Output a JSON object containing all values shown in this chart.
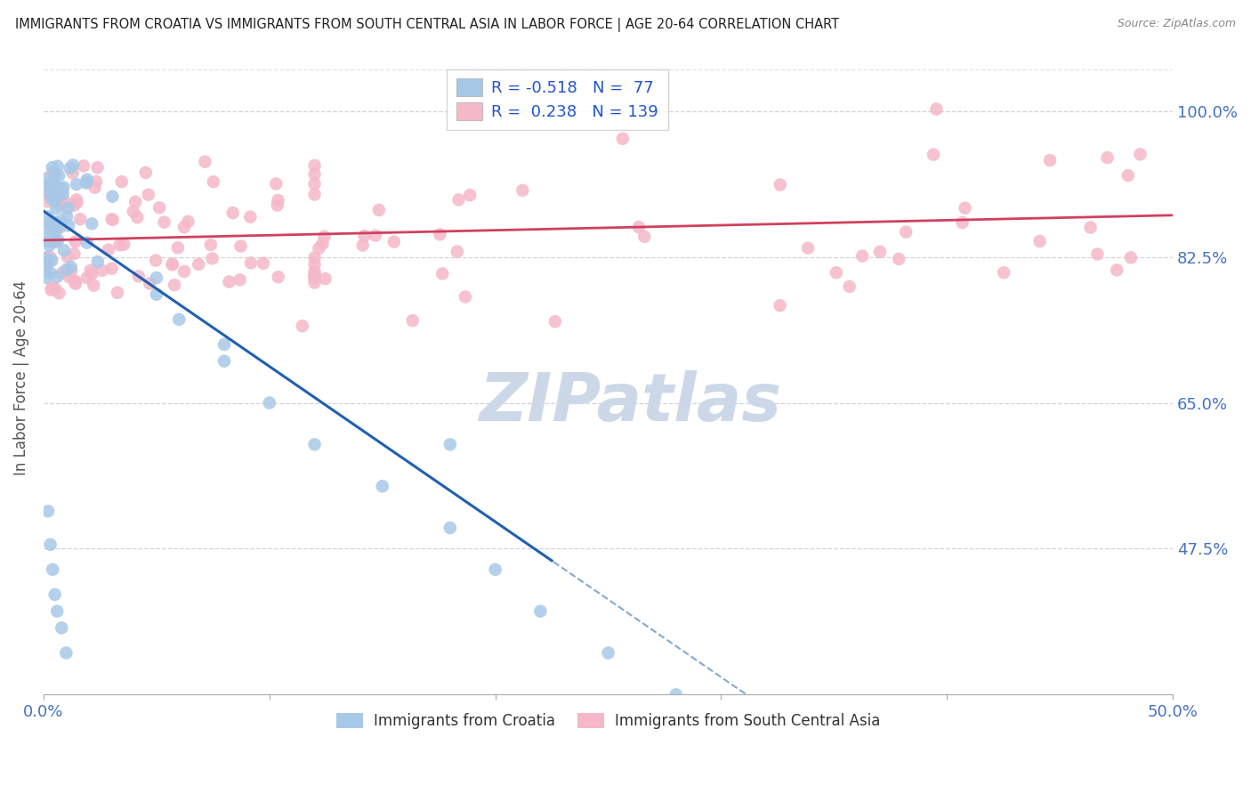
{
  "title": "IMMIGRANTS FROM CROATIA VS IMMIGRANTS FROM SOUTH CENTRAL ASIA IN LABOR FORCE | AGE 20-64 CORRELATION CHART",
  "source": "Source: ZipAtlas.com",
  "ylabel": "In Labor Force | Age 20-64",
  "x_min": 0.0,
  "x_max": 0.5,
  "y_min": 0.3,
  "y_max": 1.06,
  "y_ticks": [
    0.475,
    0.65,
    0.825,
    1.0
  ],
  "y_tick_labels": [
    "47.5%",
    "65.0%",
    "82.5%",
    "100.0%"
  ],
  "x_ticks": [
    0.0,
    0.1,
    0.2,
    0.3,
    0.4,
    0.5
  ],
  "x_tick_labels": [
    "0.0%",
    "",
    "",
    "",
    "",
    "50.0%"
  ],
  "croatia_R": -0.518,
  "croatia_N": 77,
  "sca_R": 0.238,
  "sca_N": 139,
  "croatia_color": "#a8c8e8",
  "croatia_line_color": "#2060b0",
  "sca_color": "#f5b8c8",
  "sca_line_color": "#d04060",
  "background_color": "#ffffff",
  "grid_color": "#c8c8c8",
  "title_color": "#222222",
  "axis_label_color": "#4472c4",
  "legend_label": [
    "Immigrants from Croatia",
    "Immigrants from South Central Asia"
  ],
  "watermark_text": "ZIPatlas",
  "watermark_color": "#ccd8e8"
}
